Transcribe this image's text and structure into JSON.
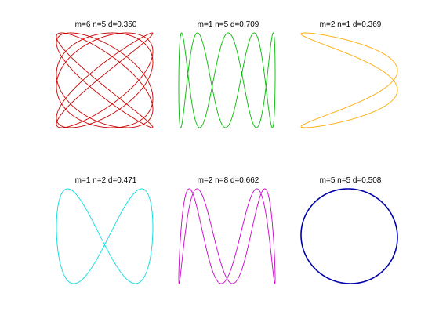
{
  "chart_data": [
    {
      "type": "line",
      "title": "m=6  n=5  d=0.350",
      "m": 6,
      "n": 5,
      "d": 0.35,
      "color": "#cc0000",
      "grid": false,
      "axes": false,
      "x_range": [
        -1,
        1
      ],
      "y_range": [
        -1,
        1
      ]
    },
    {
      "type": "line",
      "title": "m=1  n=5  d=0.709",
      "m": 1,
      "n": 5,
      "d": 0.709,
      "color": "#00bb00",
      "grid": false,
      "axes": false,
      "x_range": [
        -1,
        1
      ],
      "y_range": [
        -1,
        1
      ]
    },
    {
      "type": "line",
      "title": "m=2  n=1  d=0.369",
      "m": 2,
      "n": 1,
      "d": 0.369,
      "color": "#ffaa00",
      "grid": false,
      "axes": false,
      "x_range": [
        -1,
        1
      ],
      "y_range": [
        -1,
        1
      ]
    },
    {
      "type": "line",
      "title": "m=1  n=2  d=0.471",
      "m": 1,
      "n": 2,
      "d": 0.471,
      "color": "#00dddd",
      "grid": false,
      "axes": false,
      "x_range": [
        -1,
        1
      ],
      "y_range": [
        -1,
        1
      ]
    },
    {
      "type": "line",
      "title": "m=2  n=8  d=0.662",
      "m": 2,
      "n": 8,
      "d": 0.662,
      "color": "#cc00cc",
      "grid": false,
      "axes": false,
      "x_range": [
        -1,
        1
      ],
      "y_range": [
        -1,
        1
      ]
    },
    {
      "type": "line",
      "title": "m=5  n=5  d=0.508",
      "m": 5,
      "n": 5,
      "d": 0.508,
      "color": "#0000aa",
      "grid": false,
      "axes": false,
      "x_range": [
        -1,
        1
      ],
      "y_range": [
        -1,
        1
      ]
    }
  ]
}
